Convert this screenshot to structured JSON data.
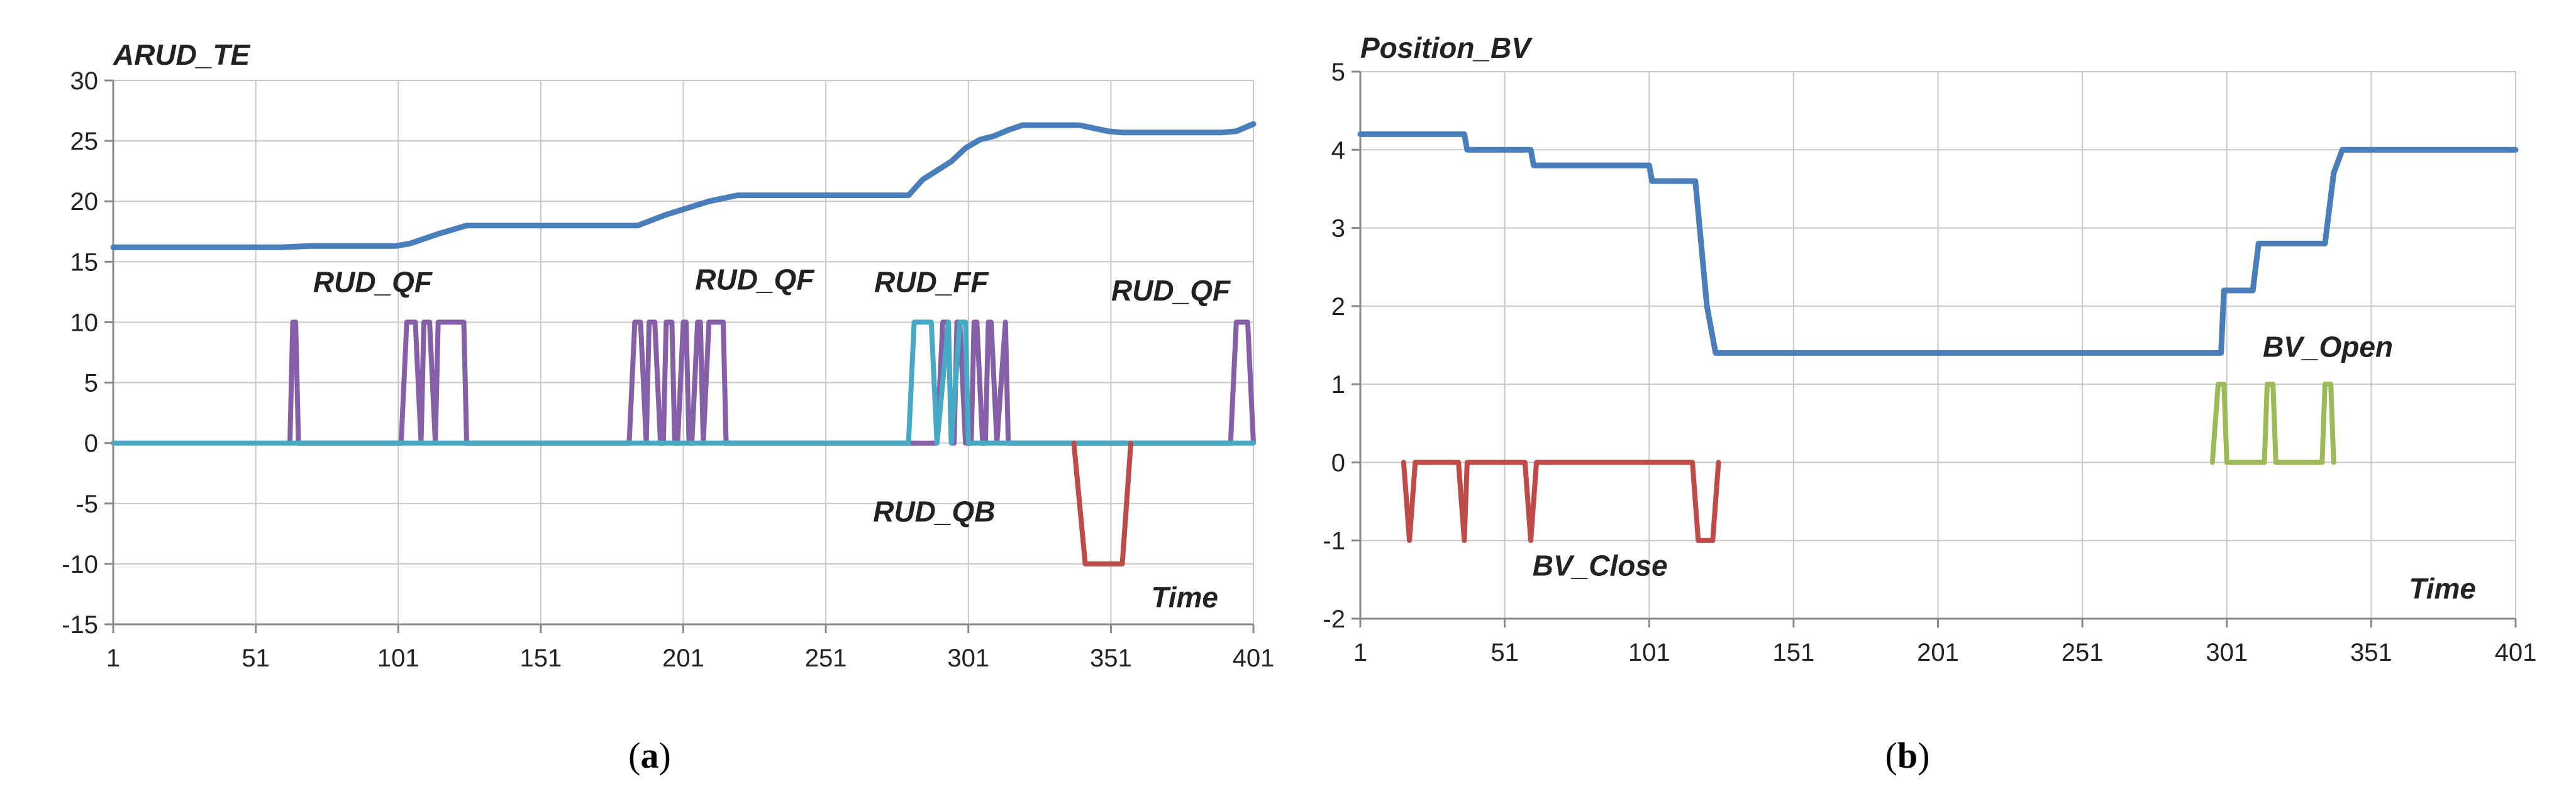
{
  "panels": [
    {
      "caption_letter": "a"
    },
    {
      "caption_letter": "b"
    }
  ],
  "chart_data": [
    {
      "type": "line",
      "title": "ARUD_TE",
      "xlabel": "Time",
      "ylabel": "",
      "xlim": [
        1,
        401
      ],
      "ylim": [
        -15,
        30
      ],
      "x_ticks": [
        1,
        51,
        101,
        151,
        201,
        251,
        301,
        351,
        401
      ],
      "y_ticks": [
        -15,
        -10,
        -5,
        0,
        5,
        10,
        15,
        20,
        25,
        30
      ],
      "grid": true,
      "annotations": [
        {
          "text": "RUD_QF",
          "x": 92,
          "y": 12.5
        },
        {
          "text": "RUD_QF",
          "x": 226,
          "y": 12.7
        },
        {
          "text": "RUD_FF",
          "x": 288,
          "y": 12.5
        },
        {
          "text": "RUD_QF",
          "x": 372,
          "y": 11.8
        },
        {
          "text": "RUD_QB",
          "x": 289,
          "y": -6.5
        }
      ],
      "series": [
        {
          "name": "ARUD_TE",
          "color": "#4a7ebb",
          "x": [
            1,
            60,
            70,
            100,
            105,
            115,
            125,
            185,
            195,
            210,
            220,
            280,
            285,
            295,
            300,
            305,
            310,
            315,
            320,
            330,
            340,
            350,
            355,
            390,
            395,
            401
          ],
          "y": [
            16.2,
            16.2,
            16.3,
            16.3,
            16.5,
            17.3,
            18,
            18,
            18.9,
            20,
            20.5,
            20.5,
            21.8,
            23.3,
            24.4,
            25.1,
            25.4,
            25.9,
            26.3,
            26.3,
            26.3,
            25.8,
            25.7,
            25.7,
            25.8,
            26.4
          ]
        },
        {
          "name": "RUD_QF",
          "color": "#8560a8",
          "x": [
            63,
            64,
            65,
            66,
            67,
            102,
            104,
            107,
            109,
            110,
            112,
            114,
            115,
            124,
            125,
            182,
            184,
            186,
            188,
            189,
            191,
            193,
            194,
            195,
            197,
            198,
            199,
            201,
            202,
            203,
            204,
            206,
            207,
            208,
            210,
            215,
            216,
            290,
            292,
            294,
            295,
            296,
            297,
            298,
            300,
            302,
            303,
            304,
            306,
            307,
            308,
            309,
            311,
            314,
            315,
            393,
            395,
            399,
            401
          ],
          "y": [
            0,
            10,
            10,
            0,
            0,
            0,
            10,
            10,
            0,
            10,
            10,
            0,
            10,
            10,
            0,
            0,
            10,
            10,
            0,
            10,
            10,
            0,
            0,
            10,
            10,
            0,
            0,
            10,
            10,
            0,
            0,
            10,
            10,
            0,
            10,
            10,
            0,
            0,
            10,
            10,
            0,
            0,
            10,
            10,
            0,
            0,
            10,
            10,
            0,
            0,
            10,
            10,
            0,
            10,
            0,
            0,
            10,
            10,
            0
          ]
        },
        {
          "name": "RUD_FF",
          "color": "#46aac5",
          "x": [
            1,
            280,
            282,
            288,
            290,
            294,
            295,
            298,
            300,
            301,
            304,
            401
          ],
          "y": [
            0,
            0,
            10,
            10,
            0,
            10,
            0,
            10,
            10,
            0,
            0,
            0
          ]
        },
        {
          "name": "RUD_QB",
          "color": "#be4b48",
          "x": [
            338,
            342,
            353,
            355,
            358
          ],
          "y": [
            0,
            -10,
            -10,
            -10,
            0
          ]
        }
      ]
    },
    {
      "type": "line",
      "title": "Position_BV",
      "xlabel": "Time",
      "ylabel": "",
      "xlim": [
        1,
        401
      ],
      "ylim": [
        -2,
        5
      ],
      "x_ticks": [
        1,
        51,
        101,
        151,
        201,
        251,
        301,
        351,
        401
      ],
      "y_ticks": [
        -2,
        -1,
        0,
        1,
        2,
        3,
        4,
        5
      ],
      "grid": true,
      "annotations": [
        {
          "text": "BV_Close",
          "x": 84,
          "y": -1.45
        },
        {
          "text": "BV_Open",
          "x": 336,
          "y": 1.35
        }
      ],
      "series": [
        {
          "name": "Position_BV",
          "color": "#4a7ebb",
          "x": [
            1,
            37,
            38,
            60,
            61,
            101,
            102,
            117,
            121,
            124,
            299,
            300,
            310,
            312,
            321,
            323,
            335,
            338,
            341,
            401
          ],
          "y": [
            4.2,
            4.2,
            4.0,
            4.0,
            3.8,
            3.8,
            3.6,
            3.6,
            2.0,
            1.4,
            1.4,
            2.2,
            2.2,
            2.8,
            2.8,
            2.8,
            2.8,
            3.7,
            4.0,
            4.0
          ]
        },
        {
          "name": "BV_Close",
          "color": "#be4b48",
          "x": [
            16,
            18,
            20,
            35,
            37,
            38,
            58,
            60,
            62,
            116,
            118,
            123,
            125
          ],
          "y": [
            0,
            -1,
            0,
            0,
            -1,
            0,
            0,
            -1,
            0,
            0,
            -1,
            -1,
            0
          ]
        },
        {
          "name": "BV_Open",
          "color": "#9bbb59",
          "x": [
            296,
            298,
            300,
            301,
            314,
            315,
            317,
            318,
            334,
            335,
            337,
            338
          ],
          "y": [
            0,
            1,
            1,
            0,
            0,
            1,
            1,
            0,
            0,
            1,
            1,
            0
          ]
        }
      ]
    }
  ]
}
